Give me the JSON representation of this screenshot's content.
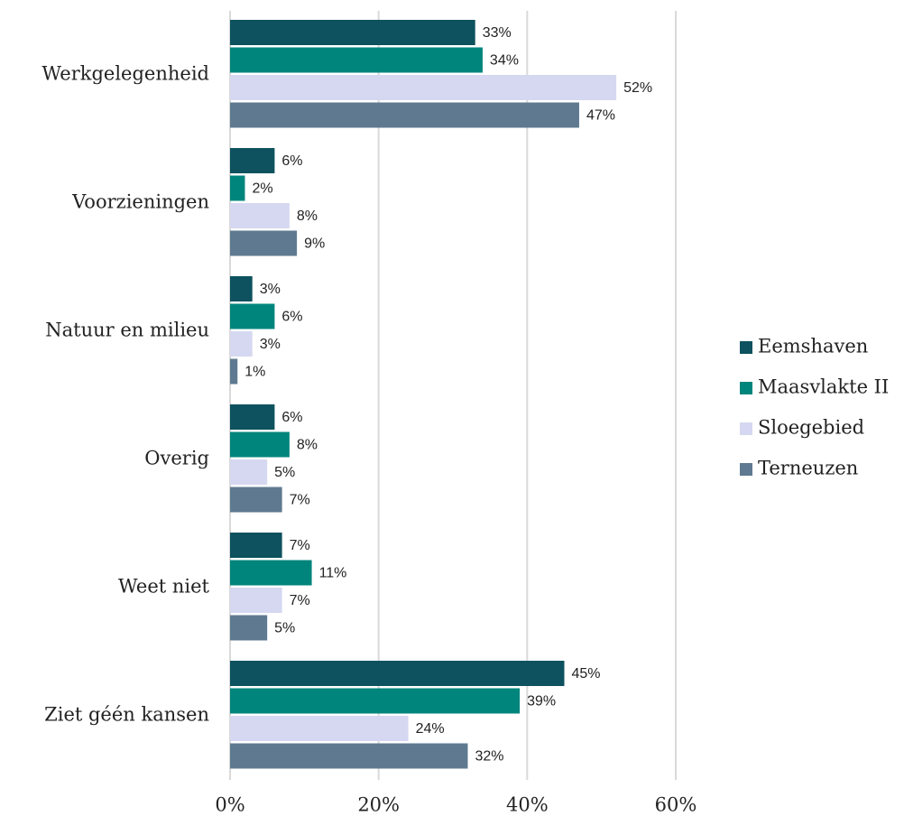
{
  "chart_data": {
    "type": "bar",
    "orientation": "horizontal",
    "categories": [
      "Werkgelegenheid",
      "Voorzieningen",
      "Natuur en milieu",
      "Overig",
      "Weet niet",
      "Ziet géén kansen"
    ],
    "series": [
      {
        "name": "Eemshaven",
        "color": "#0d525e",
        "values": [
          33,
          6,
          3,
          6,
          7,
          45
        ],
        "value_labels": [
          "33%",
          "6%",
          "3%",
          "6%",
          "7%",
          "45%"
        ]
      },
      {
        "name": "Maasvlakte II",
        "color": "#00857c",
        "values": [
          34,
          2,
          6,
          8,
          11,
          39
        ],
        "value_labels": [
          "34%",
          "2%",
          "6%",
          "8%",
          "11%",
          "39%"
        ]
      },
      {
        "name": "Sloegebied",
        "color": "#d5d8f0",
        "values": [
          52,
          8,
          3,
          5,
          7,
          24
        ],
        "value_labels": [
          "52%",
          "8%",
          "3%",
          "5%",
          "7%",
          "24%"
        ]
      },
      {
        "name": "Terneuzen",
        "color": "#5f7a90",
        "values": [
          47,
          9,
          1,
          7,
          5,
          32
        ],
        "value_labels": [
          "47%",
          "9%",
          "1%",
          "7%",
          "5%",
          "32%"
        ]
      }
    ],
    "xlim": [
      0,
      60
    ],
    "xticks": [
      {
        "value": 0,
        "label": "0%"
      },
      {
        "value": 20,
        "label": "20%"
      },
      {
        "value": 40,
        "label": "40%"
      },
      {
        "value": 60,
        "label": "60%"
      }
    ],
    "grid": true,
    "legend": "right"
  }
}
